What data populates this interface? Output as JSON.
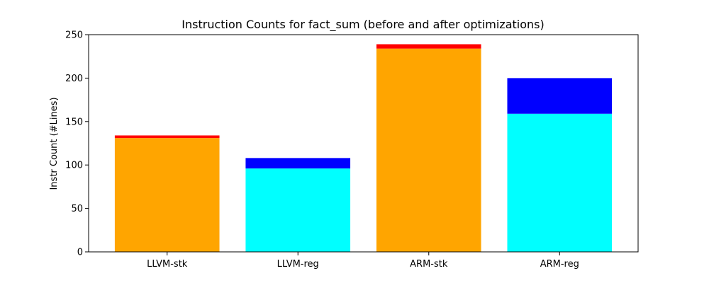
{
  "chart_data": {
    "type": "bar",
    "stacked": true,
    "title": "Instruction Counts for fact_sum (before and after optimizations)",
    "xlabel": "",
    "ylabel": "Instr Count (#Lines)",
    "ylim": [
      0,
      250
    ],
    "yticks": [
      0,
      50,
      100,
      150,
      200,
      250
    ],
    "grid": false,
    "categories": [
      "LLVM-stk",
      "LLVM-reg",
      "ARM-stk",
      "ARM-reg"
    ],
    "bars": [
      {
        "category": "LLVM-stk",
        "segments": [
          {
            "value": 131,
            "color": "#FFA500"
          },
          {
            "value": 3,
            "color": "#FF0000"
          }
        ]
      },
      {
        "category": "LLVM-reg",
        "segments": [
          {
            "value": 96,
            "color": "#00FFFF"
          },
          {
            "value": 12,
            "color": "#0000FF"
          }
        ]
      },
      {
        "category": "ARM-stk",
        "segments": [
          {
            "value": 234,
            "color": "#FFA500"
          },
          {
            "value": 5,
            "color": "#FF0000"
          }
        ]
      },
      {
        "category": "ARM-reg",
        "segments": [
          {
            "value": 159,
            "color": "#00FFFF"
          },
          {
            "value": 41,
            "color": "#0000FF"
          }
        ]
      }
    ]
  }
}
